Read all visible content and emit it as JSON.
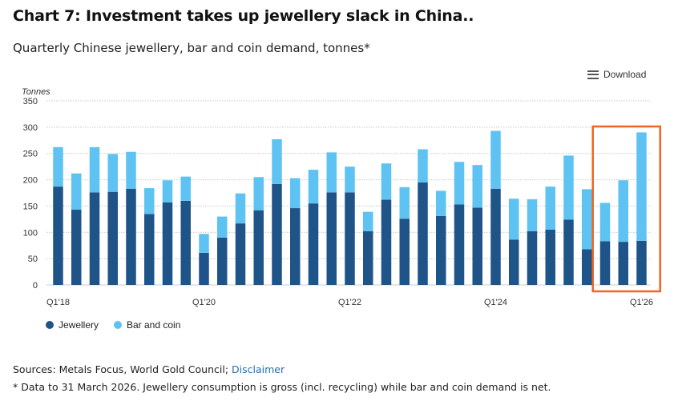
{
  "header": {
    "title": "Chart 7: Investment takes up jewellery slack in China..",
    "subtitle": "Quarterly Chinese jewellery, bar and coin demand, tonnes*"
  },
  "toolbar": {
    "download_label": "Download",
    "download_icon": "menu-icon"
  },
  "footer": {
    "sources_label": "Sources: Metals Focus, World Gold Council; ",
    "disclaimer_link": "Disclaimer",
    "note": "* Data to 31 March 2026. Jewellery consumption is gross (incl. recycling) while bar and coin demand is net."
  },
  "chart_data": {
    "type": "bar",
    "stacked": true,
    "ylabel": "Tonnes",
    "ylim": [
      0,
      350
    ],
    "yticks": [
      0,
      50,
      100,
      150,
      200,
      250,
      300,
      350
    ],
    "grid": true,
    "legend_position": "bottom-left",
    "categories": [
      "Q1'18",
      "Q2'18",
      "Q3'18",
      "Q4'18",
      "Q1'19",
      "Q2'19",
      "Q3'19",
      "Q4'19",
      "Q1'20",
      "Q2'20",
      "Q3'20",
      "Q4'20",
      "Q1'21",
      "Q2'21",
      "Q3'21",
      "Q4'21",
      "Q1'22",
      "Q2'22",
      "Q3'22",
      "Q4'22",
      "Q1'23",
      "Q2'23",
      "Q3'23",
      "Q4'23",
      "Q1'24",
      "Q2'24",
      "Q3'24",
      "Q4'24",
      "Q1'25",
      "Q2'25",
      "Q3'25",
      "Q4'25",
      "Q1'26"
    ],
    "xtick_labels": [
      "Q1'18",
      "Q1'20",
      "Q1'22",
      "Q1'24",
      "Q1'26"
    ],
    "series": [
      {
        "name": "Jewellery",
        "color": "#1f5488",
        "values": [
          187,
          143,
          176,
          177,
          183,
          135,
          157,
          160,
          61,
          90,
          117,
          142,
          192,
          146,
          155,
          176,
          176,
          102,
          162,
          126,
          195,
          131,
          153,
          147,
          183,
          86,
          102,
          105,
          124,
          68,
          83,
          82,
          84
        ]
      },
      {
        "name": "Bar and coin",
        "color": "#5ec3f2",
        "values": [
          75,
          69,
          86,
          72,
          70,
          49,
          42,
          46,
          36,
          40,
          57,
          63,
          85,
          57,
          64,
          76,
          49,
          37,
          69,
          60,
          63,
          48,
          81,
          81,
          110,
          78,
          61,
          82,
          122,
          114,
          73,
          117,
          206
        ]
      }
    ],
    "highlight": {
      "from": "Q3'25",
      "to": "Q1'26",
      "color": "#f26522"
    }
  }
}
